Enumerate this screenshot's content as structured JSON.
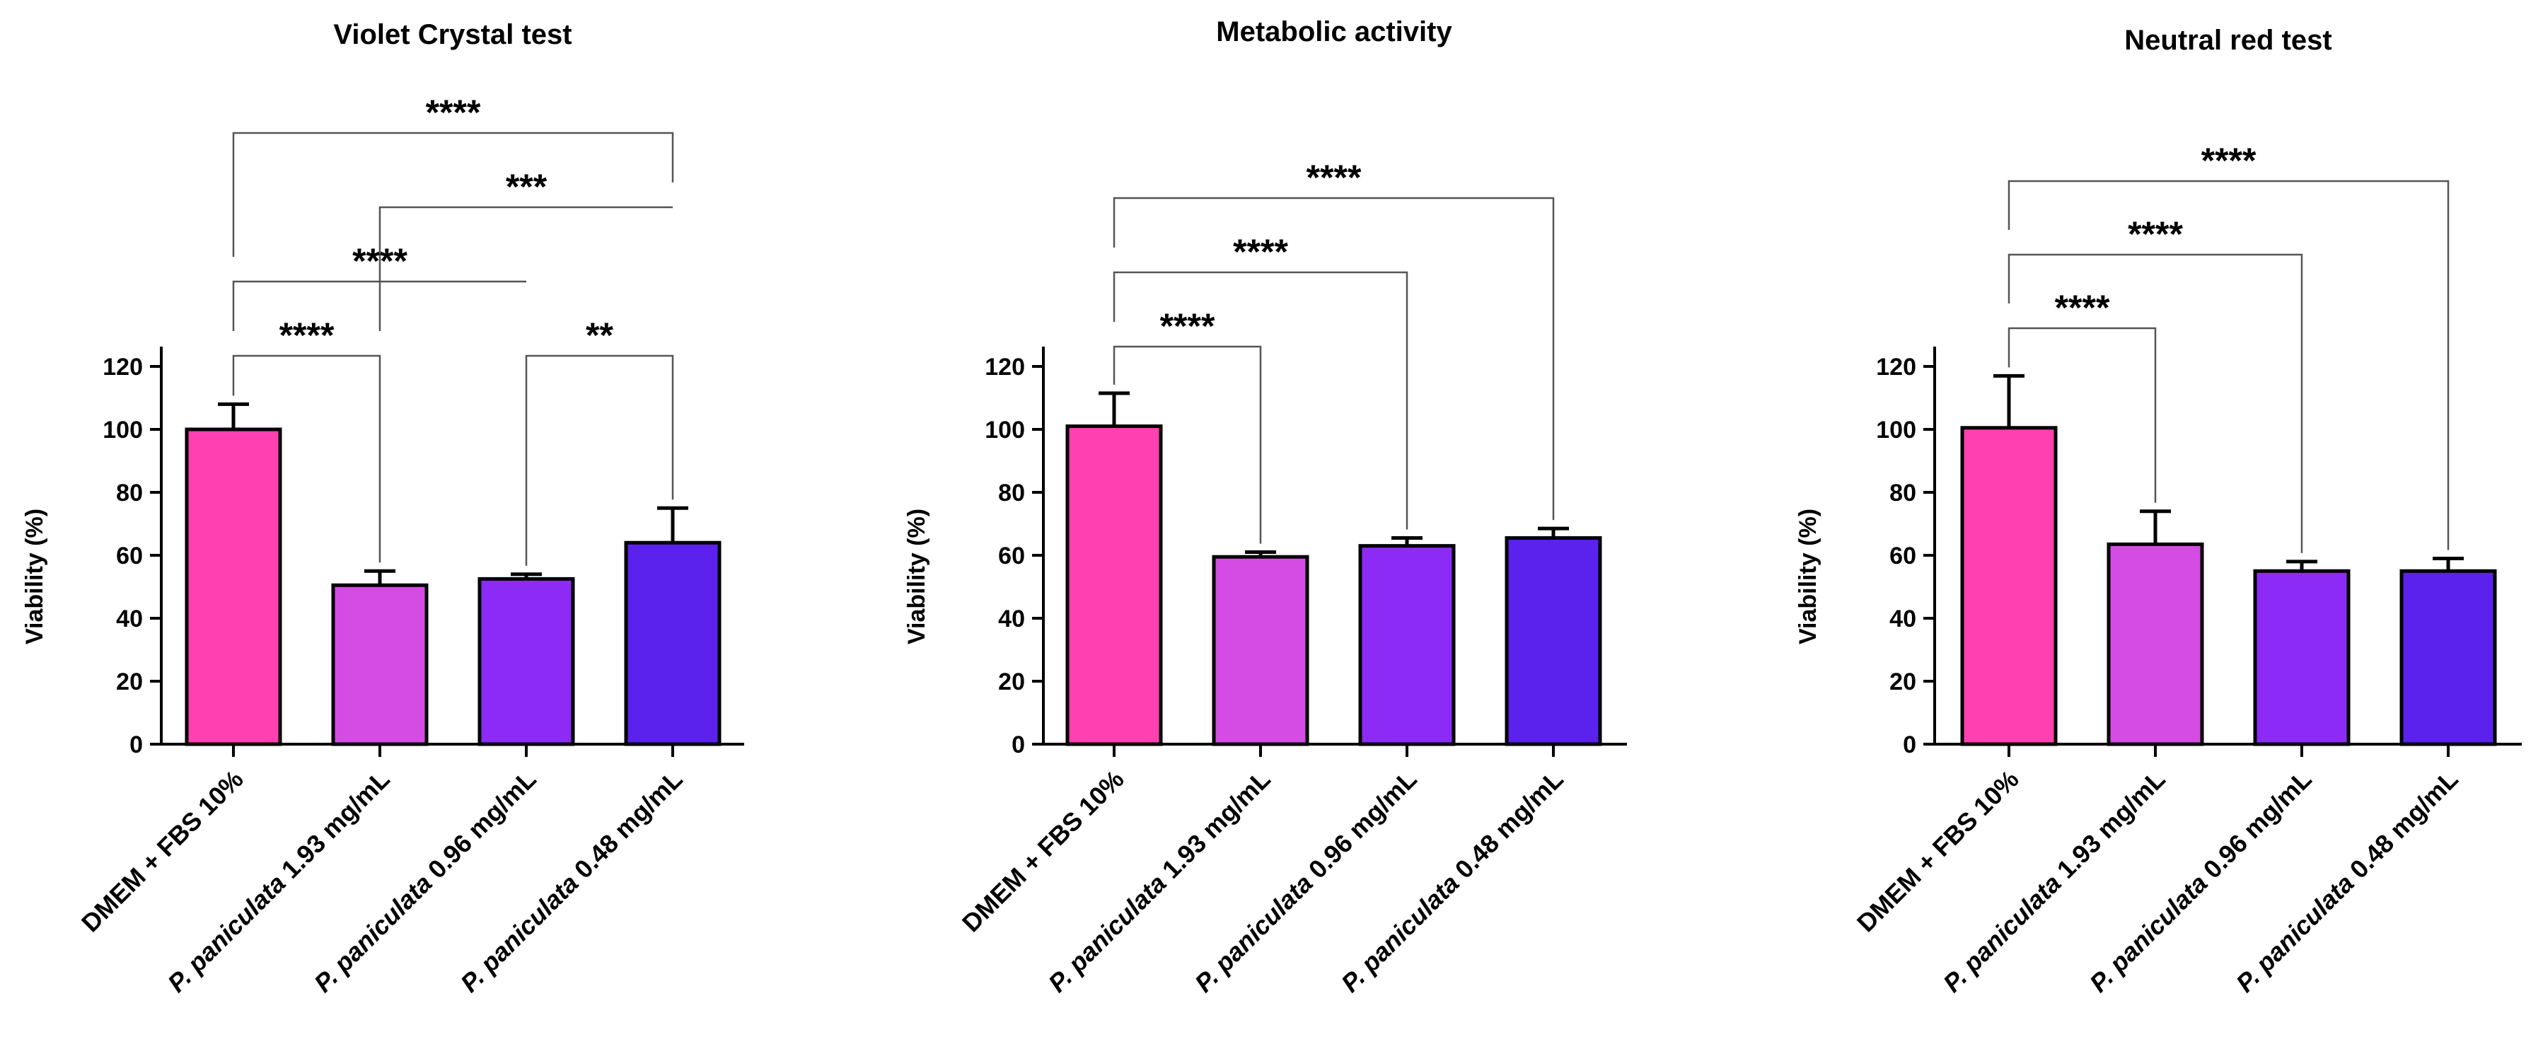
{
  "chart_data": [
    {
      "type": "bar",
      "title": "Violet Crystal test",
      "ylabel": "Viability (%)",
      "xlabel": "",
      "ylim": [
        0,
        120
      ],
      "yticks": [
        0,
        20,
        40,
        60,
        80,
        100,
        120
      ],
      "categories": [
        {
          "italic": "",
          "text": "DMEM + FBS 10%"
        },
        {
          "italic": "P. paniculata",
          "text": " 1.93 mg/mL"
        },
        {
          "italic": "P. paniculata",
          "text": " 0.96 mg/mL"
        },
        {
          "italic": "P. paniculata",
          "text": " 0.48 mg/mL"
        }
      ],
      "values": [
        100,
        50.5,
        52.5,
        64
      ],
      "errors": [
        8,
        4.5,
        1.5,
        11
      ],
      "colors": [
        "#ff40b0",
        "#d44ce3",
        "#8c2bf6",
        "#5a22ec"
      ],
      "significance": [
        {
          "from": 0,
          "to": 3,
          "label": "****"
        },
        {
          "from": 1,
          "to": 3,
          "label": "***"
        },
        {
          "from": 0,
          "to": 2,
          "label": "****"
        },
        {
          "from": 0,
          "to": 1,
          "label": "****"
        },
        {
          "from": 2,
          "to": 3,
          "label": "**"
        }
      ]
    },
    {
      "type": "bar",
      "title": "Metabolic activity",
      "ylabel": "Viability (%)",
      "xlabel": "",
      "ylim": [
        0,
        120
      ],
      "yticks": [
        0,
        20,
        40,
        60,
        80,
        100,
        120
      ],
      "categories": [
        {
          "italic": "",
          "text": "DMEM + FBS 10%"
        },
        {
          "italic": "P. paniculata",
          "text": " 1.93 mg/mL"
        },
        {
          "italic": "P. paniculata",
          "text": " 0.96 mg/mL"
        },
        {
          "italic": "P. paniculata",
          "text": " 0.48 mg/mL"
        }
      ],
      "values": [
        101,
        59.5,
        63,
        65.5
      ],
      "errors": [
        10.5,
        1.5,
        2.5,
        3
      ],
      "colors": [
        "#ff40b0",
        "#d44ce3",
        "#8c2bf6",
        "#5a22ec"
      ],
      "significance": [
        {
          "from": 0,
          "to": 3,
          "label": "****"
        },
        {
          "from": 0,
          "to": 2,
          "label": "****"
        },
        {
          "from": 0,
          "to": 1,
          "label": "****"
        }
      ]
    },
    {
      "type": "bar",
      "title": "Neutral red test",
      "ylabel": "Viability (%)",
      "xlabel": "",
      "ylim": [
        0,
        120
      ],
      "yticks": [
        0,
        20,
        40,
        60,
        80,
        100,
        120
      ],
      "categories": [
        {
          "italic": "",
          "text": "DMEM + FBS 10%"
        },
        {
          "italic": "P. paniculata",
          "text": " 1.93 mg/mL"
        },
        {
          "italic": "P. paniculata",
          "text": " 0.96 mg/mL"
        },
        {
          "italic": "P. paniculata",
          "text": " 0.48 mg/mL"
        }
      ],
      "values": [
        100.5,
        63.5,
        55,
        55
      ],
      "errors": [
        16.5,
        10.5,
        3,
        4
      ],
      "colors": [
        "#ff40b0",
        "#d44ce3",
        "#8c2bf6",
        "#5a22ec"
      ],
      "significance": [
        {
          "from": 0,
          "to": 3,
          "label": "****"
        },
        {
          "from": 0,
          "to": 2,
          "label": "****"
        },
        {
          "from": 0,
          "to": 1,
          "label": "****"
        }
      ]
    }
  ]
}
